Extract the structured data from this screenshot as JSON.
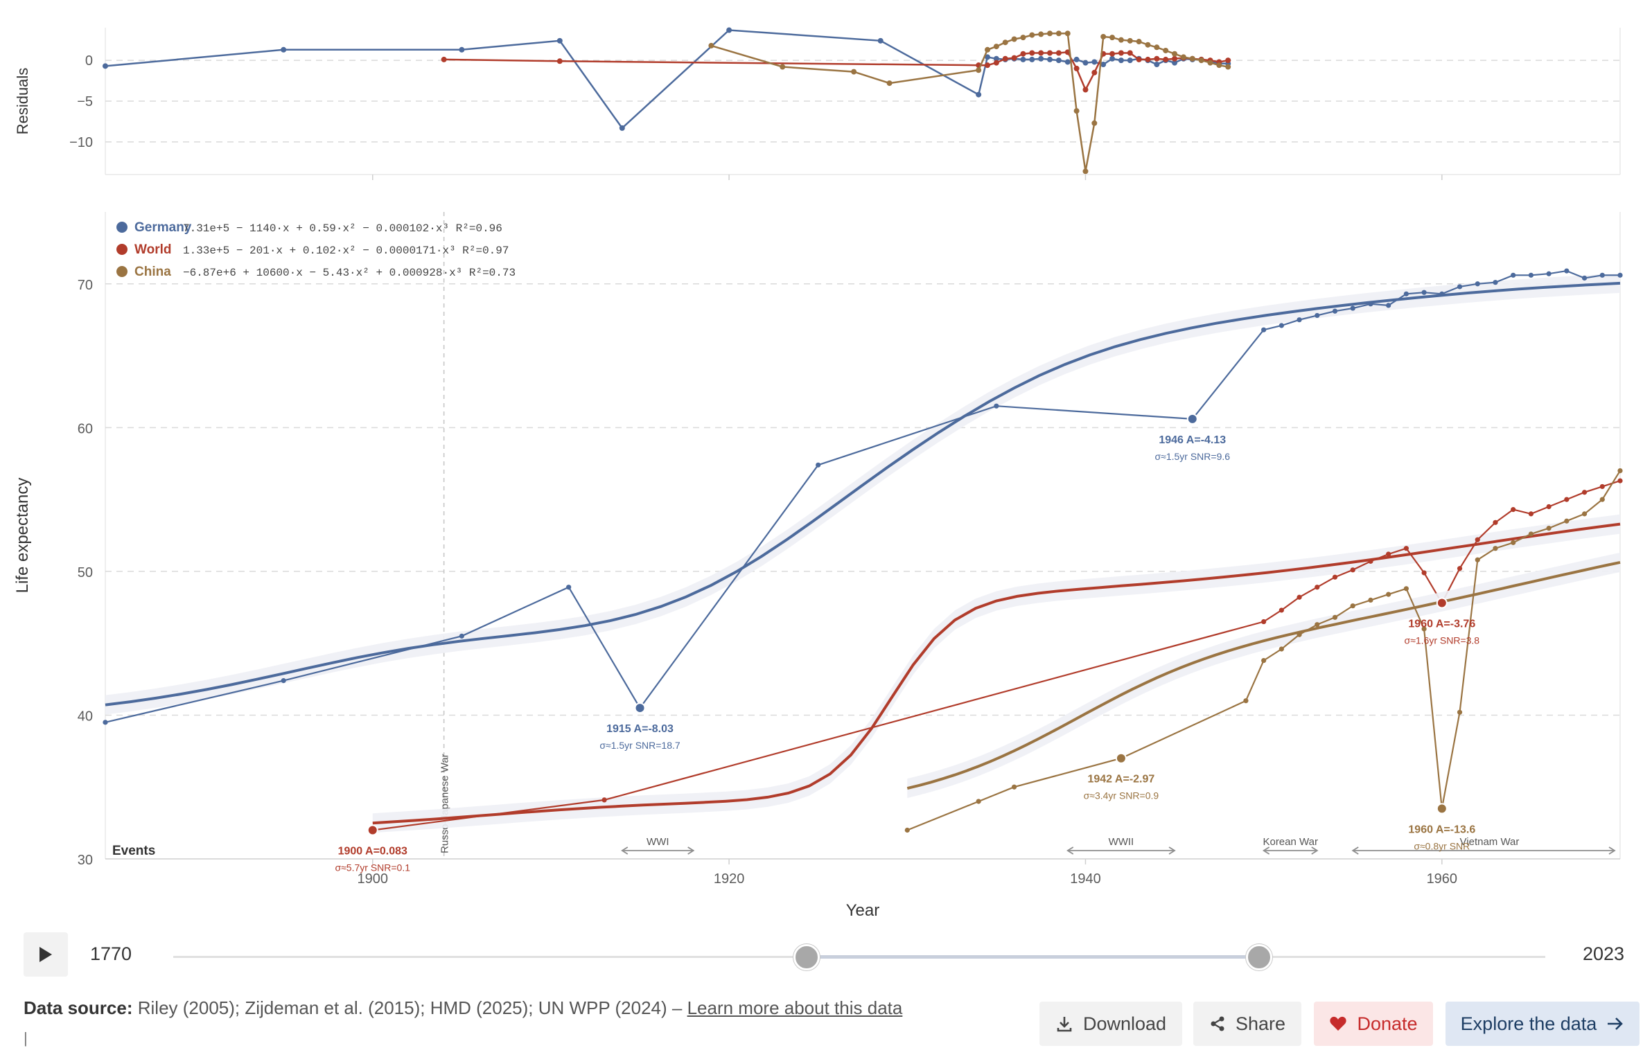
{
  "chart_data": [
    {
      "type": "line",
      "panel": "residuals",
      "ylabel": "Residuals",
      "ylim": [
        -14,
        4
      ],
      "yticks": [
        0,
        -5,
        -10
      ],
      "xlim": [
        1862,
        2032
      ],
      "series": [
        {
          "name": "Germany",
          "color": "#4c6a9c",
          "x": [
            1862,
            1882,
            1902,
            1913,
            1920,
            1932,
            1949,
            1960,
            1961,
            1962,
            1963,
            1964,
            1965,
            1966,
            1967,
            1968,
            1969,
            1970,
            1971,
            1972,
            1973,
            1974,
            1975,
            1976,
            1977,
            1978,
            1979,
            1980,
            1981,
            1982,
            1983,
            1984,
            1985,
            1986,
            1987,
            1988
          ],
          "y": [
            -0.7,
            1.3,
            1.3,
            2.4,
            -8.3,
            3.7,
            2.4,
            -4.2,
            0.4,
            0.2,
            0.1,
            0.2,
            0.1,
            0.1,
            0.2,
            0.1,
            0.0,
            -0.2,
            0.1,
            -0.3,
            -0.2,
            -0.5,
            0.2,
            0.0,
            0.0,
            0.2,
            0.0,
            -0.5,
            0.0,
            -0.3,
            0.2,
            0.1,
            0.1,
            -0.2,
            -0.4,
            -0.4
          ]
        },
        {
          "name": "World",
          "color": "#b13c2b",
          "x": [
            1900,
            1913,
            1960,
            1961,
            1962,
            1963,
            1964,
            1965,
            1966,
            1967,
            1968,
            1969,
            1970,
            1971,
            1972,
            1973,
            1974,
            1975,
            1976,
            1977,
            1978,
            1979,
            1980,
            1981,
            1982,
            1983,
            1984,
            1985,
            1986,
            1987,
            1988
          ],
          "y": [
            0.1,
            -0.1,
            -0.6,
            -0.6,
            -0.3,
            0.2,
            0.3,
            0.8,
            0.9,
            0.9,
            0.9,
            0.9,
            1.0,
            -1.0,
            -3.6,
            -1.5,
            0.8,
            0.8,
            0.9,
            0.9,
            0.1,
            0.1,
            0.2,
            0.1,
            0.2,
            0.3,
            0.2,
            0.1,
            0.0,
            -0.2,
            0.0
          ]
        },
        {
          "name": "China",
          "color": "#9a7442",
          "x": [
            1930,
            1938,
            1946,
            1950,
            1960,
            1961,
            1962,
            1963,
            1964,
            1965,
            1966,
            1967,
            1968,
            1969,
            1970,
            1971,
            1972,
            1973,
            1974,
            1975,
            1976,
            1977,
            1978,
            1979,
            1980,
            1981,
            1982,
            1983,
            1984,
            1985,
            1986,
            1987,
            1988
          ],
          "y": [
            1.8,
            -0.8,
            -1.4,
            -2.8,
            -1.2,
            1.3,
            1.7,
            2.2,
            2.6,
            2.8,
            3.1,
            3.2,
            3.3,
            3.3,
            3.3,
            -6.2,
            -13.6,
            -7.7,
            2.9,
            2.8,
            2.5,
            2.4,
            2.3,
            1.9,
            1.6,
            1.2,
            0.8,
            0.4,
            0.2,
            0.0,
            -0.3,
            -0.6,
            -0.8
          ]
        }
      ]
    },
    {
      "type": "line",
      "panel": "main",
      "ylabel": "Life expectancy",
      "xlabel": "Year",
      "ylim": [
        30,
        75
      ],
      "yticks": [
        30,
        40,
        50,
        60,
        70
      ],
      "xticks": [
        1900,
        1920,
        1940,
        1960
      ],
      "xlim": [
        1885,
        1970
      ],
      "legend": [
        {
          "name": "Germany",
          "color": "#4c6a9c",
          "formula": "7.31e+5 − 1140·x + 0.59·x² − 0.000102·x³ R²=0.96"
        },
        {
          "name": "World",
          "color": "#b13c2b",
          "formula": "1.33e+5 − 201·x + 0.102·x² − 0.0000171·x³ R²=0.97"
        },
        {
          "name": "China",
          "color": "#9a7442",
          "formula": "−6.87e+6 + 10600·x − 5.43·x² + 0.000928·x³ R²=0.73"
        }
      ],
      "series": [
        {
          "name": "Germany",
          "color": "#4c6a9c",
          "x": [
            1885,
            1895,
            1905,
            1911,
            1915,
            1925,
            1935,
            1946,
            1950,
            1951,
            1952,
            1953,
            1954,
            1955,
            1956,
            1957,
            1958,
            1959,
            1960,
            1961,
            1962,
            1963,
            1964,
            1965,
            1966,
            1967,
            1968,
            1969,
            1970
          ],
          "y": [
            39.5,
            42.4,
            45.5,
            48.9,
            40.5,
            57.4,
            61.5,
            60.6,
            66.8,
            67.1,
            67.5,
            67.8,
            68.1,
            68.3,
            68.6,
            68.5,
            69.3,
            69.4,
            69.3,
            69.8,
            70.0,
            70.1,
            70.6,
            70.6,
            70.7,
            70.9,
            70.4,
            70.6,
            70.6
          ]
        },
        {
          "name": "World",
          "color": "#b13c2b",
          "x": [
            1900,
            1913,
            1950,
            1951,
            1952,
            1953,
            1954,
            1955,
            1956,
            1957,
            1958,
            1959,
            1960,
            1961,
            1962,
            1963,
            1964,
            1965,
            1966,
            1967,
            1968,
            1969,
            1970
          ],
          "y": [
            32.0,
            34.1,
            46.5,
            47.3,
            48.2,
            48.9,
            49.6,
            50.1,
            50.7,
            51.2,
            51.6,
            49.9,
            47.8,
            50.2,
            52.2,
            53.4,
            54.3,
            54.0,
            54.5,
            55.0,
            55.5,
            55.9,
            56.3
          ]
        },
        {
          "name": "China",
          "color": "#9a7442",
          "x": [
            1930,
            1934,
            1936,
            1942,
            1949,
            1950,
            1951,
            1952,
            1953,
            1954,
            1955,
            1956,
            1957,
            1958,
            1959,
            1960,
            1961,
            1962,
            1963,
            1964,
            1965,
            1966,
            1967,
            1968,
            1969,
            1970
          ],
          "y": [
            32.0,
            34.0,
            35.0,
            37.0,
            41.0,
            43.8,
            44.6,
            45.6,
            46.3,
            46.8,
            47.6,
            48.0,
            48.4,
            48.8,
            46.0,
            33.5,
            40.2,
            50.8,
            51.6,
            52.0,
            52.6,
            53.0,
            53.5,
            54.0,
            55.0,
            57.0
          ]
        }
      ],
      "annotations": [
        {
          "series": "Germany",
          "x": 1915,
          "y": 40.5,
          "title": "1915 A=-8.03",
          "detail": "σ≈1.5yr SNR=18.7"
        },
        {
          "series": "Germany",
          "x": 1946,
          "y": 60.6,
          "title": "1946 A=-4.13",
          "detail": "σ≈1.5yr SNR=9.6"
        },
        {
          "series": "World",
          "x": 1900,
          "y": 32.0,
          "title": "1900 A=0.083",
          "detail": "σ≈5.7yr SNR=0.1"
        },
        {
          "series": "World",
          "x": 1960,
          "y": 47.8,
          "title": "1960 A=-3.76",
          "detail": "σ≈1.6yr SNR=3.8"
        },
        {
          "series": "China",
          "x": 1942,
          "y": 37.0,
          "title": "1942 A=-2.97",
          "detail": "σ≈3.4yr SNR=0.9"
        },
        {
          "series": "China",
          "x": 1960,
          "y": 33.5,
          "title": "1960 A=-13.6",
          "detail": "σ≈0.8yr SNR"
        }
      ],
      "events_label": "Events",
      "events": [
        {
          "label": "Russo-Japanese War",
          "start": 1904,
          "end": 1905
        },
        {
          "label": "WWI",
          "start": 1914,
          "end": 1918
        },
        {
          "label": "WWII",
          "start": 1939,
          "end": 1945
        },
        {
          "label": "Korean War",
          "start": 1950,
          "end": 1953
        },
        {
          "label": "Vietnam War",
          "start": 1955,
          "end": 1975
        }
      ]
    }
  ],
  "controls": {
    "start_year": "1770",
    "end_year": "2023",
    "range_start_fraction": 0.46,
    "range_end_fraction": 0.79
  },
  "footer": {
    "source_label": "Data source:",
    "source_text": "Riley (2005); Zijdeman et al. (2015); HMD (2025); UN WPP (2024) –",
    "learn_more": "Learn more about this data",
    "download": "Download",
    "share": "Share",
    "donate": "Donate",
    "explore": "Explore the data"
  },
  "colors": {
    "germany": "#4c6a9c",
    "world": "#b13c2b",
    "china": "#9a7442"
  }
}
